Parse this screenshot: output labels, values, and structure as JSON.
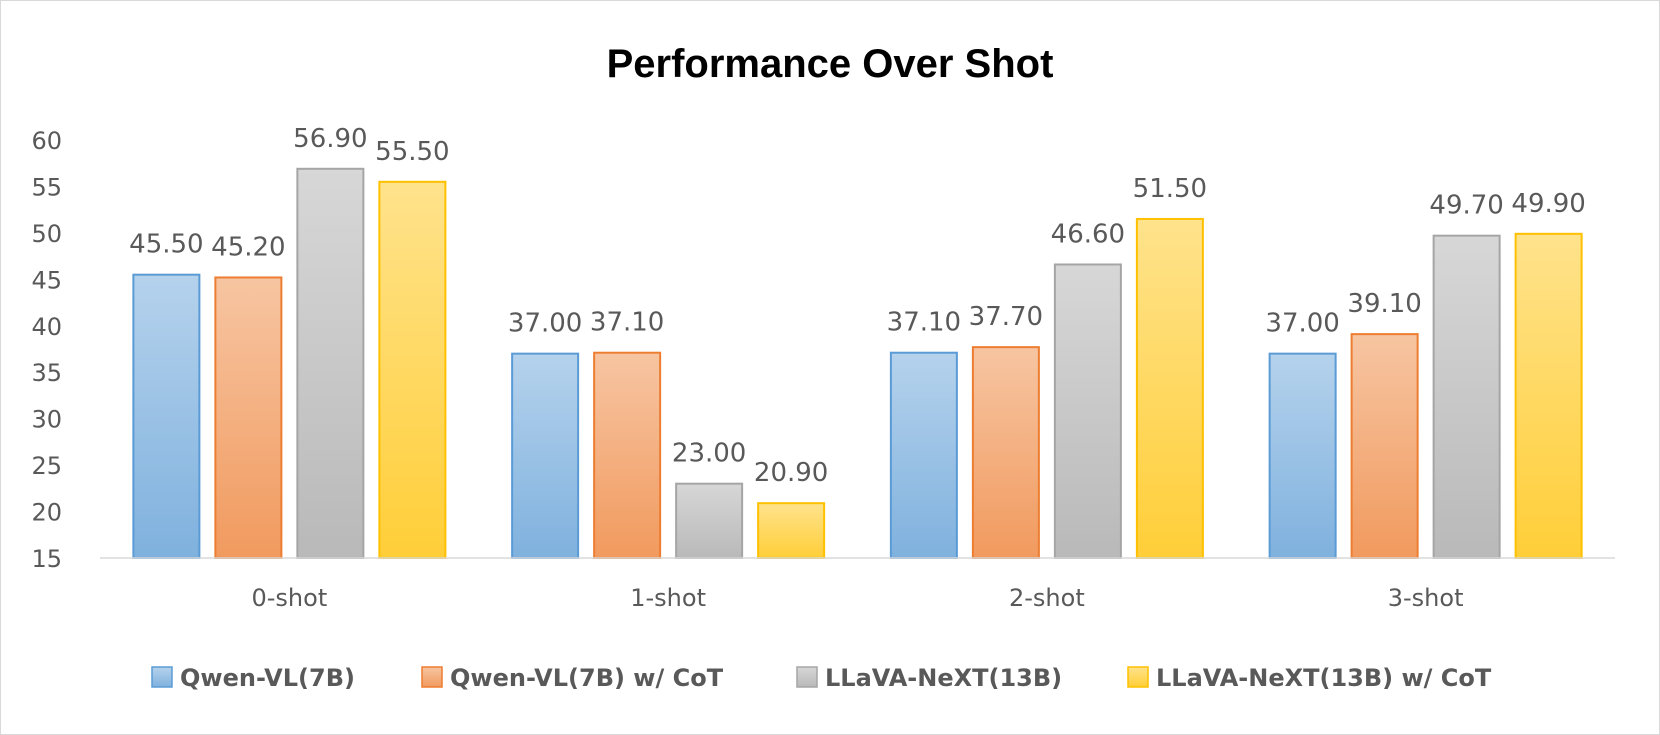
{
  "chart_data": {
    "type": "bar",
    "title": "Performance Over Shot",
    "xlabel": "",
    "ylabel": "",
    "categories": [
      "0-shot",
      "1-shot",
      "2-shot",
      "3-shot"
    ],
    "ylim": [
      15,
      60
    ],
    "yticks": [
      15,
      20,
      25,
      30,
      35,
      40,
      45,
      50,
      55,
      60
    ],
    "grid": false,
    "legend_position": "bottom",
    "series": [
      {
        "name": "Qwen-VL(7B)",
        "values": [
          45.5,
          37.0,
          37.1,
          37.0
        ],
        "labels": [
          "45.50",
          "37.00",
          "37.10",
          "37.00"
        ],
        "color": "#5b9bd5"
      },
      {
        "name": "Qwen-VL(7B) w/ CoT",
        "values": [
          45.2,
          37.1,
          37.7,
          39.1
        ],
        "labels": [
          "45.20",
          "37.10",
          "37.70",
          "39.10"
        ],
        "color": "#ed7d31"
      },
      {
        "name": "LLaVA-NeXT(13B)",
        "values": [
          56.9,
          23.0,
          46.6,
          49.7
        ],
        "labels": [
          "56.90",
          "23.00",
          "46.60",
          "49.70"
        ],
        "color": "#a5a5a5"
      },
      {
        "name": "LLaVA-NeXT(13B) w/ CoT",
        "values": [
          55.5,
          20.9,
          51.5,
          49.9
        ],
        "labels": [
          "55.50",
          "20.90",
          "51.50",
          "49.90"
        ],
        "color": "#ffc000"
      }
    ]
  }
}
